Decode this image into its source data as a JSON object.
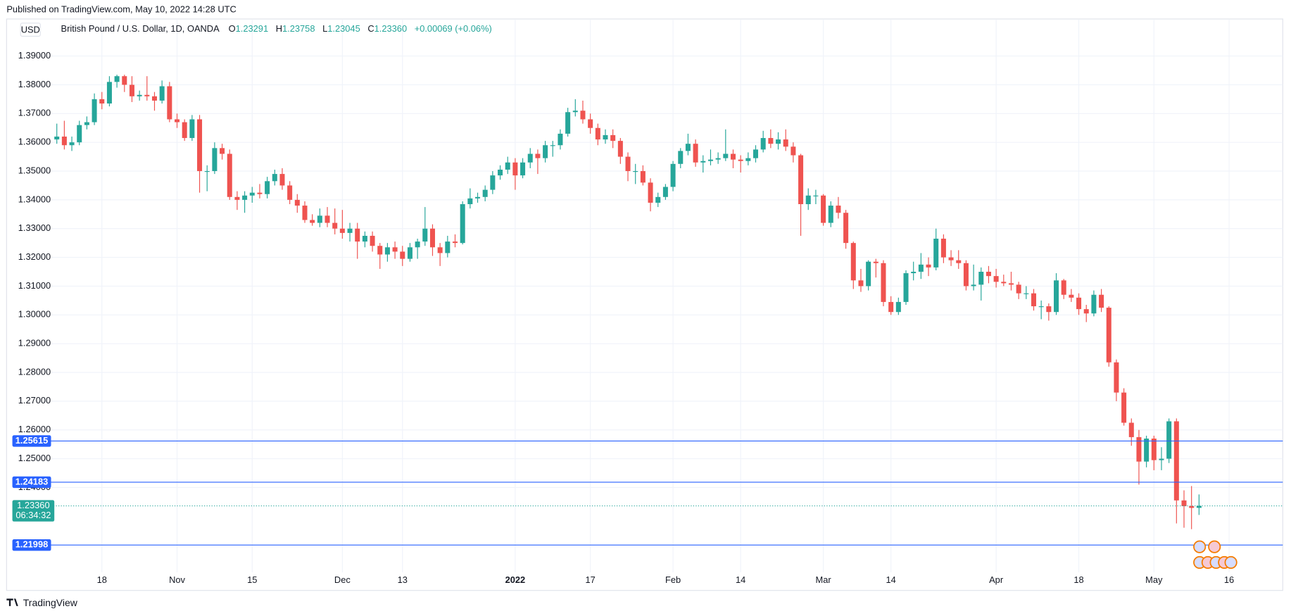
{
  "header": {
    "published": "Published on TradingView.com, May 10, 2022 14:28 UTC",
    "footer": "TradingView"
  },
  "chart_data": {
    "type": "candlestick",
    "currency": "USD",
    "title": "British Pound / U.S. Dollar, 1D, OANDA",
    "legend": {
      "o": "O",
      "open": "1.23291",
      "h": "H",
      "high": "1.23758",
      "l": "L",
      "low": "1.23045",
      "c": "C",
      "close": "1.23360",
      "change": "+0.00069 (+0.06%)"
    },
    "up_color": "#26a69a",
    "down_color": "#ef5350",
    "level_color": "#2962ff",
    "grid": true,
    "ylim": [
      1.2042,
      1.4026
    ],
    "yticks": [
      {
        "value": 1.39,
        "label": "1.39000"
      },
      {
        "value": 1.38,
        "label": "1.38000"
      },
      {
        "value": 1.37,
        "label": "1.37000"
      },
      {
        "value": 1.36,
        "label": "1.36000"
      },
      {
        "value": 1.35,
        "label": "1.35000"
      },
      {
        "value": 1.34,
        "label": "1.34000"
      },
      {
        "value": 1.33,
        "label": "1.33000"
      },
      {
        "value": 1.32,
        "label": "1.32000"
      },
      {
        "value": 1.31,
        "label": "1.31000"
      },
      {
        "value": 1.3,
        "label": "1.30000"
      },
      {
        "value": 1.29,
        "label": "1.29000"
      },
      {
        "value": 1.28,
        "label": "1.28000"
      },
      {
        "value": 1.27,
        "label": "1.27000"
      },
      {
        "value": 1.26,
        "label": "1.26000"
      },
      {
        "value": 1.25,
        "label": "1.25000"
      },
      {
        "value": 1.24,
        "label": "1.24000"
      }
    ],
    "xticks": [
      {
        "value": "2021-10-18",
        "label": "18"
      },
      {
        "value": "2021-11-01",
        "label": "Nov"
      },
      {
        "value": "2021-11-15",
        "label": "15"
      },
      {
        "value": "2021-12-01",
        "label": "Dec"
      },
      {
        "value": "2021-12-13",
        "label": "13"
      },
      {
        "value": "2022-01-03",
        "label": "2022"
      },
      {
        "value": "2022-01-17",
        "label": "17"
      },
      {
        "value": "2022-02-01",
        "label": "Feb"
      },
      {
        "value": "2022-02-14",
        "label": "14"
      },
      {
        "value": "2022-03-01",
        "label": "Mar"
      },
      {
        "value": "2022-03-14",
        "label": "14"
      },
      {
        "value": "2022-04-01",
        "label": "Apr"
      },
      {
        "value": "2022-04-18",
        "label": "18"
      },
      {
        "value": "2022-05-02",
        "label": "May"
      },
      {
        "value": "2022-05-16",
        "label": "16"
      }
    ],
    "levels": [
      1.25615,
      1.24183,
      1.21998
    ],
    "last_price": {
      "value": 1.2336,
      "label": "1.23360",
      "countdown": "06:34:32"
    },
    "x": [
      "2021-10-08",
      "2021-10-11",
      "2021-10-12",
      "2021-10-13",
      "2021-10-14",
      "2021-10-15",
      "2021-10-18",
      "2021-10-19",
      "2021-10-20",
      "2021-10-21",
      "2021-10-22",
      "2021-10-25",
      "2021-10-26",
      "2021-10-27",
      "2021-10-28",
      "2021-10-29",
      "2021-11-01",
      "2021-11-02",
      "2021-11-03",
      "2021-11-04",
      "2021-11-05",
      "2021-11-08",
      "2021-11-09",
      "2021-11-10",
      "2021-11-11",
      "2021-11-12",
      "2021-11-15",
      "2021-11-16",
      "2021-11-17",
      "2021-11-18",
      "2021-11-19",
      "2021-11-22",
      "2021-11-23",
      "2021-11-24",
      "2021-11-25",
      "2021-11-26",
      "2021-11-29",
      "2021-11-30",
      "2021-12-01",
      "2021-12-02",
      "2021-12-03",
      "2021-12-06",
      "2021-12-07",
      "2021-12-08",
      "2021-12-09",
      "2021-12-10",
      "2021-12-13",
      "2021-12-14",
      "2021-12-15",
      "2021-12-16",
      "2021-12-17",
      "2021-12-20",
      "2021-12-21",
      "2021-12-22",
      "2021-12-23",
      "2021-12-24",
      "2021-12-27",
      "2021-12-28",
      "2021-12-29",
      "2021-12-30",
      "2021-12-31",
      "2022-01-03",
      "2022-01-04",
      "2022-01-05",
      "2022-01-06",
      "2022-01-07",
      "2022-01-10",
      "2022-01-11",
      "2022-01-12",
      "2022-01-13",
      "2022-01-14",
      "2022-01-17",
      "2022-01-18",
      "2022-01-19",
      "2022-01-20",
      "2022-01-21",
      "2022-01-24",
      "2022-01-25",
      "2022-01-26",
      "2022-01-27",
      "2022-01-28",
      "2022-01-31",
      "2022-02-01",
      "2022-02-02",
      "2022-02-03",
      "2022-02-04",
      "2022-02-07",
      "2022-02-08",
      "2022-02-09",
      "2022-02-10",
      "2022-02-11",
      "2022-02-14",
      "2022-02-15",
      "2022-02-16",
      "2022-02-17",
      "2022-02-18",
      "2022-02-21",
      "2022-02-22",
      "2022-02-23",
      "2022-02-24",
      "2022-02-25",
      "2022-02-28",
      "2022-03-01",
      "2022-03-02",
      "2022-03-03",
      "2022-03-04",
      "2022-03-07",
      "2022-03-08",
      "2022-03-09",
      "2022-03-10",
      "2022-03-11",
      "2022-03-14",
      "2022-03-15",
      "2022-03-16",
      "2022-03-17",
      "2022-03-18",
      "2022-03-21",
      "2022-03-22",
      "2022-03-23",
      "2022-03-24",
      "2022-03-25",
      "2022-03-28",
      "2022-03-29",
      "2022-03-30",
      "2022-03-31",
      "2022-04-01",
      "2022-04-04",
      "2022-04-05",
      "2022-04-06",
      "2022-04-07",
      "2022-04-08",
      "2022-04-11",
      "2022-04-12",
      "2022-04-13",
      "2022-04-14",
      "2022-04-15",
      "2022-04-18",
      "2022-04-19",
      "2022-04-20",
      "2022-04-21",
      "2022-04-22",
      "2022-04-25",
      "2022-04-26",
      "2022-04-27",
      "2022-04-28",
      "2022-04-29",
      "2022-05-02",
      "2022-05-03",
      "2022-05-04",
      "2022-05-05",
      "2022-05-06",
      "2022-05-09",
      "2022-05-10"
    ],
    "open": [
      1.361,
      1.362,
      1.359,
      1.36,
      1.366,
      1.367,
      1.375,
      1.3735,
      1.381,
      1.383,
      1.38,
      1.376,
      1.3765,
      1.376,
      1.3745,
      1.3795,
      1.368,
      1.367,
      1.3615,
      1.368,
      1.35,
      1.35,
      1.358,
      1.356,
      1.341,
      1.34,
      1.3415,
      1.3425,
      1.342,
      1.3465,
      1.349,
      1.345,
      1.34,
      1.338,
      1.333,
      1.332,
      1.3345,
      1.332,
      1.33,
      1.3285,
      1.33,
      1.3255,
      1.3275,
      1.324,
      1.321,
      1.3235,
      1.322,
      1.3195,
      1.3235,
      1.3255,
      1.33,
      1.3235,
      1.3215,
      1.3255,
      1.325,
      1.3385,
      1.3405,
      1.341,
      1.3435,
      1.3485,
      1.3505,
      1.353,
      1.3485,
      1.353,
      1.356,
      1.3545,
      1.359,
      1.359,
      1.363,
      1.3705,
      1.371,
      1.368,
      1.365,
      1.361,
      1.3625,
      1.3605,
      1.355,
      1.35,
      1.35,
      1.346,
      1.339,
      1.341,
      1.3445,
      1.3525,
      1.357,
      1.3595,
      1.353,
      1.3535,
      1.354,
      1.3545,
      1.356,
      1.354,
      1.3535,
      1.3545,
      1.3575,
      1.3615,
      1.3595,
      1.361,
      1.3585,
      1.3555,
      1.3385,
      1.3415,
      1.3415,
      1.332,
      1.338,
      1.3355,
      1.325,
      1.312,
      1.31,
      1.3185,
      1.318,
      1.3045,
      1.301,
      1.3045,
      1.3145,
      1.315,
      1.3175,
      1.3165,
      1.3265,
      1.32,
      1.319,
      1.318,
      1.31,
      1.3105,
      1.315,
      1.3135,
      1.3115,
      1.311,
      1.3105,
      1.3075,
      1.3075,
      1.303,
      1.303,
      1.301,
      1.312,
      1.307,
      1.306,
      1.302,
      1.3005,
      1.307,
      1.3025,
      1.2835,
      1.273,
      1.2625,
      1.2575,
      1.249,
      1.257,
      1.2495,
      1.25,
      1.263,
      1.2355,
      1.2335,
      1.23291
    ],
    "high": [
      1.3665,
      1.3675,
      1.362,
      1.3675,
      1.369,
      1.377,
      1.3775,
      1.383,
      1.3835,
      1.3835,
      1.383,
      1.378,
      1.383,
      1.3775,
      1.3815,
      1.381,
      1.37,
      1.368,
      1.3695,
      1.3695,
      1.352,
      1.36,
      1.3595,
      1.3575,
      1.343,
      1.343,
      1.3445,
      1.3455,
      1.348,
      1.3505,
      1.351,
      1.3465,
      1.342,
      1.3395,
      1.335,
      1.337,
      1.3375,
      1.337,
      1.3365,
      1.332,
      1.332,
      1.329,
      1.329,
      1.325,
      1.325,
      1.3255,
      1.324,
      1.325,
      1.3265,
      1.3375,
      1.3315,
      1.325,
      1.3275,
      1.328,
      1.3395,
      1.344,
      1.3425,
      1.345,
      1.35,
      1.352,
      1.355,
      1.3545,
      1.3545,
      1.358,
      1.3575,
      1.3605,
      1.3605,
      1.3645,
      1.372,
      1.375,
      1.3745,
      1.37,
      1.3665,
      1.3645,
      1.3645,
      1.3615,
      1.3565,
      1.3525,
      1.352,
      1.3475,
      1.3425,
      1.3455,
      1.3535,
      1.358,
      1.363,
      1.361,
      1.3555,
      1.3575,
      1.3565,
      1.3645,
      1.3575,
      1.3555,
      1.3565,
      1.359,
      1.364,
      1.3645,
      1.3635,
      1.3645,
      1.36,
      1.356,
      1.344,
      1.3435,
      1.342,
      1.3395,
      1.341,
      1.3365,
      1.3255,
      1.316,
      1.319,
      1.3195,
      1.319,
      1.3065,
      1.306,
      1.3155,
      1.3185,
      1.3215,
      1.32,
      1.33,
      1.328,
      1.3225,
      1.3225,
      1.319,
      1.3175,
      1.3165,
      1.317,
      1.316,
      1.314,
      1.315,
      1.3115,
      1.31,
      1.309,
      1.305,
      1.304,
      1.3145,
      1.3125,
      1.309,
      1.3075,
      1.3035,
      1.3085,
      1.309,
      1.303,
      1.2845,
      1.2745,
      1.264,
      1.26,
      1.258,
      1.258,
      1.254,
      1.264,
      1.264,
      1.239,
      1.2405,
      1.23758
    ],
    "low": [
      1.3595,
      1.3575,
      1.357,
      1.359,
      1.3645,
      1.366,
      1.3715,
      1.3725,
      1.379,
      1.3775,
      1.374,
      1.3745,
      1.3745,
      1.371,
      1.3735,
      1.367,
      1.365,
      1.3605,
      1.3605,
      1.3425,
      1.343,
      1.349,
      1.354,
      1.34,
      1.3365,
      1.3355,
      1.339,
      1.3405,
      1.3405,
      1.345,
      1.3435,
      1.3385,
      1.3355,
      1.332,
      1.331,
      1.3305,
      1.3305,
      1.328,
      1.3265,
      1.3255,
      1.3195,
      1.3235,
      1.322,
      1.316,
      1.3185,
      1.3195,
      1.317,
      1.3185,
      1.3195,
      1.324,
      1.3205,
      1.317,
      1.32,
      1.3235,
      1.3245,
      1.337,
      1.339,
      1.3395,
      1.342,
      1.347,
      1.349,
      1.3435,
      1.3475,
      1.351,
      1.349,
      1.353,
      1.355,
      1.3575,
      1.362,
      1.369,
      1.3665,
      1.363,
      1.359,
      1.3595,
      1.358,
      1.3525,
      1.3465,
      1.3455,
      1.345,
      1.336,
      1.3375,
      1.34,
      1.343,
      1.351,
      1.3555,
      1.3515,
      1.3495,
      1.352,
      1.3525,
      1.3535,
      1.351,
      1.3495,
      1.352,
      1.353,
      1.3565,
      1.358,
      1.3575,
      1.357,
      1.353,
      1.3275,
      1.3365,
      1.3385,
      1.331,
      1.3305,
      1.3335,
      1.323,
      1.309,
      1.308,
      1.3085,
      1.313,
      1.303,
      1.3,
      1.3,
      1.3035,
      1.312,
      1.3125,
      1.3135,
      1.3155,
      1.318,
      1.317,
      1.316,
      1.3085,
      1.3085,
      1.305,
      1.311,
      1.3095,
      1.31,
      1.3085,
      1.3055,
      1.3055,
      1.3015,
      1.2985,
      1.298,
      1.3,
      1.3055,
      1.3045,
      1.3,
      1.2975,
      1.2995,
      1.301,
      1.282,
      1.27,
      1.2615,
      1.2545,
      1.241,
      1.247,
      1.246,
      1.246,
      1.2485,
      1.2275,
      1.226,
      1.2255,
      1.23045
    ],
    "close": [
      1.362,
      1.359,
      1.36,
      1.366,
      1.367,
      1.375,
      1.3735,
      1.381,
      1.383,
      1.38,
      1.376,
      1.3765,
      1.376,
      1.3745,
      1.3795,
      1.368,
      1.367,
      1.3615,
      1.368,
      1.35,
      1.35,
      1.358,
      1.356,
      1.341,
      1.34,
      1.3415,
      1.3425,
      1.342,
      1.3465,
      1.349,
      1.345,
      1.34,
      1.338,
      1.333,
      1.332,
      1.3345,
      1.332,
      1.33,
      1.3285,
      1.33,
      1.3255,
      1.3275,
      1.324,
      1.321,
      1.3235,
      1.322,
      1.3195,
      1.3235,
      1.3255,
      1.33,
      1.3235,
      1.3215,
      1.3255,
      1.325,
      1.3385,
      1.3405,
      1.341,
      1.3435,
      1.3485,
      1.3505,
      1.353,
      1.3485,
      1.353,
      1.356,
      1.3545,
      1.359,
      1.359,
      1.363,
      1.3705,
      1.371,
      1.368,
      1.365,
      1.361,
      1.3625,
      1.3605,
      1.355,
      1.35,
      1.35,
      1.346,
      1.339,
      1.341,
      1.3445,
      1.3525,
      1.357,
      1.3595,
      1.353,
      1.3535,
      1.354,
      1.3545,
      1.356,
      1.354,
      1.3535,
      1.3545,
      1.3575,
      1.3615,
      1.3595,
      1.361,
      1.3585,
      1.3555,
      1.3385,
      1.3415,
      1.3415,
      1.332,
      1.338,
      1.3355,
      1.325,
      1.312,
      1.31,
      1.3185,
      1.318,
      1.3045,
      1.301,
      1.3045,
      1.3145,
      1.315,
      1.3175,
      1.3165,
      1.3265,
      1.32,
      1.319,
      1.318,
      1.31,
      1.3105,
      1.315,
      1.3135,
      1.3115,
      1.311,
      1.3105,
      1.3075,
      1.3075,
      1.303,
      1.303,
      1.301,
      1.312,
      1.307,
      1.306,
      1.302,
      1.3005,
      1.307,
      1.3025,
      1.2835,
      1.273,
      1.2625,
      1.2575,
      1.249,
      1.257,
      1.2495,
      1.25,
      1.263,
      1.2355,
      1.2335,
      1.2329,
      1.2336
    ]
  }
}
